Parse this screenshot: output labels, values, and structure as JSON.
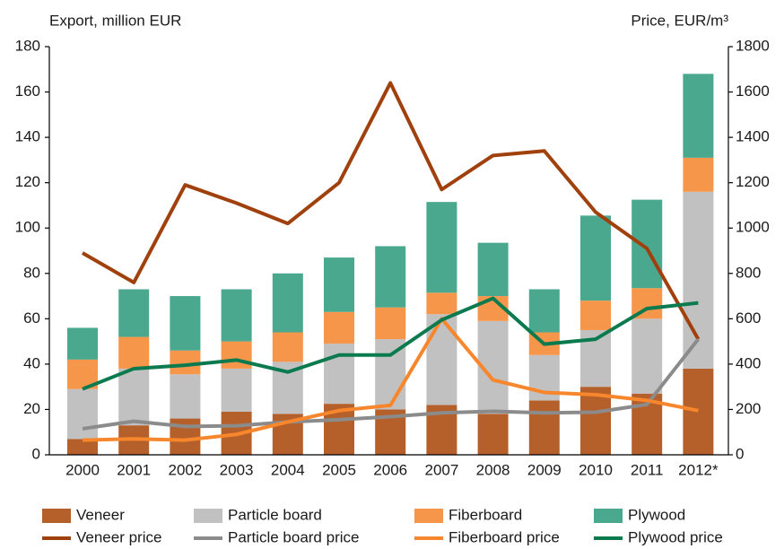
{
  "chart_data": {
    "type": "bar",
    "y_label": "Export, million EUR",
    "y2_label": "Price, EUR/m³",
    "categories": [
      "2000",
      "2001",
      "2002",
      "2003",
      "2004",
      "2005",
      "2006",
      "2007",
      "2008",
      "2009",
      "2010",
      "2011",
      "2012*"
    ],
    "series": [
      {
        "name": "Veneer",
        "type": "bar",
        "color": "#b5602a",
        "values": [
          7,
          13,
          16,
          19,
          18,
          22.5,
          20,
          22,
          18,
          24,
          30,
          27,
          38
        ]
      },
      {
        "name": "Particle board",
        "type": "bar",
        "color": "#c2c1c2",
        "values": [
          22,
          25,
          19.5,
          19,
          23,
          26.5,
          31,
          40,
          41,
          20,
          25,
          33,
          78
        ]
      },
      {
        "name": "Fiberboard",
        "type": "bar",
        "color": "#f6964b",
        "values": [
          13,
          14,
          10.5,
          12,
          13,
          14,
          14,
          9.5,
          11,
          10,
          13,
          13.5,
          15
        ]
      },
      {
        "name": "Plywood",
        "type": "bar",
        "color": "#4aa88e",
        "values": [
          14,
          21,
          24,
          23,
          26,
          24,
          27,
          40,
          23.5,
          19,
          37.5,
          39,
          37
        ]
      },
      {
        "name": "Veneer price",
        "type": "line",
        "axis": "y2",
        "color": "#a0410d",
        "values": [
          890,
          760,
          1190,
          1110,
          1020,
          1200,
          1640,
          1170,
          1320,
          1340,
          1070,
          910,
          510
        ]
      },
      {
        "name": "Particle board price",
        "type": "line",
        "axis": "y2",
        "color": "#8b8b8b",
        "values": [
          115,
          148,
          125,
          128,
          145,
          155,
          168,
          185,
          192,
          185,
          188,
          222,
          510
        ]
      },
      {
        "name": "Fiberboard price",
        "type": "line",
        "axis": "y2",
        "color": "#f7862c",
        "values": [
          65,
          70,
          65,
          90,
          145,
          195,
          218,
          600,
          330,
          275,
          265,
          240,
          195
        ]
      },
      {
        "name": "Plywood price",
        "type": "line",
        "axis": "y2",
        "color": "#0b7a4e",
        "values": [
          290,
          380,
          395,
          418,
          365,
          440,
          440,
          595,
          690,
          488,
          510,
          645,
          670
        ]
      }
    ],
    "ylim": [
      0,
      180
    ],
    "yticks": [
      0,
      20,
      40,
      60,
      80,
      100,
      120,
      140,
      160,
      180
    ],
    "y2lim": [
      0,
      1800
    ],
    "y2ticks": [
      0,
      200,
      400,
      600,
      800,
      1000,
      1200,
      1400,
      1600,
      1800
    ],
    "stacked": true,
    "grid": false
  }
}
